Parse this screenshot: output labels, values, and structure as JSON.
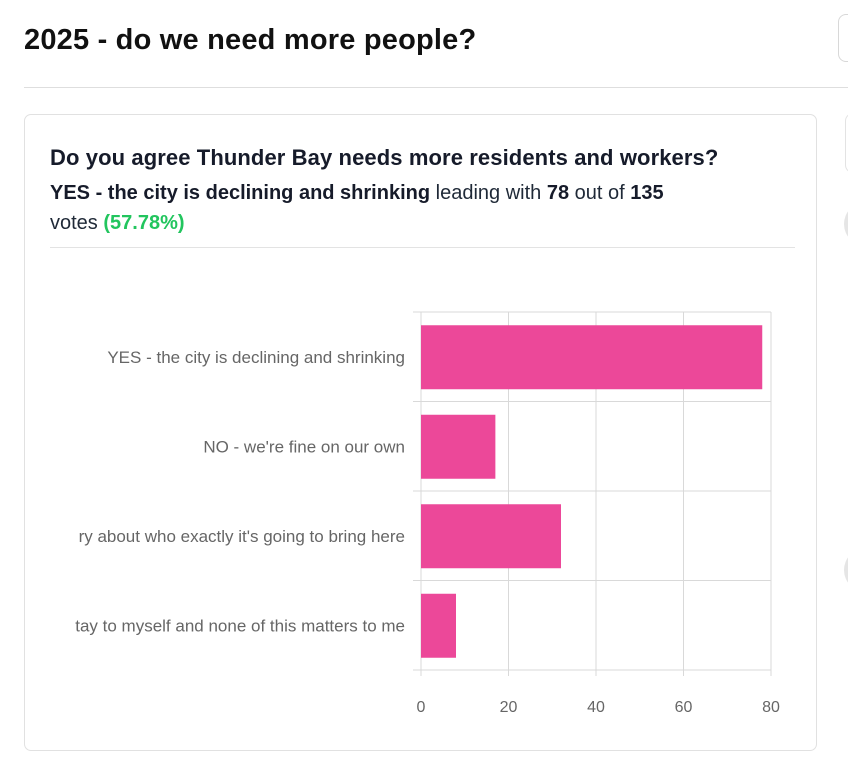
{
  "page": {
    "title": "2025 - do we need more people?"
  },
  "poll": {
    "question": "Do you agree Thunder Bay needs more residents and workers?",
    "leader_option": "YES - the city is declining and shrinking",
    "leading_with": "leading with",
    "leader_votes": "78",
    "out_of": "out of",
    "total_votes": "135",
    "votes_word": "votes",
    "leader_percent": "(57.78%)"
  },
  "colors": {
    "bar": "#ec4899",
    "grid": "#d9d9d9",
    "percent": "#22c55e"
  },
  "chart_data": {
    "type": "bar",
    "orientation": "horizontal",
    "categories": [
      "YES - the city is declining and shrinking",
      "NO - we're fine on our own",
      "ry about who exactly it's going to bring here",
      "tay to myself and none of this matters to me"
    ],
    "values": [
      78,
      17,
      32,
      8
    ],
    "xlim": [
      0,
      80
    ],
    "xticks": [
      "0",
      "20",
      "40",
      "60",
      "80"
    ],
    "grid": true
  }
}
